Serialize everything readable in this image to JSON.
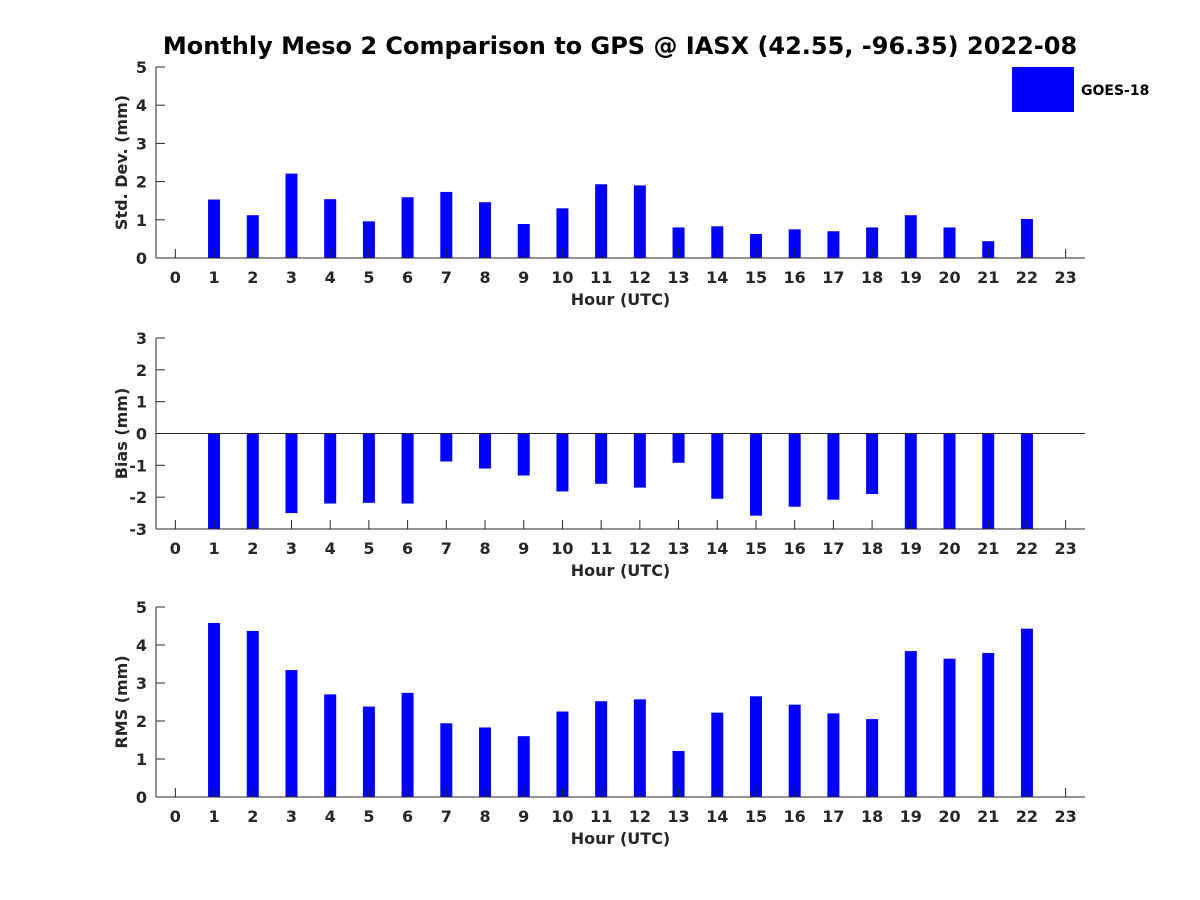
{
  "title": "Monthly Meso 2 Comparison to GPS @ IASX (42.55, -96.35) 2022-08",
  "legend": {
    "label": "GOES-18",
    "color": "#0000ff"
  },
  "chart_data": [
    {
      "type": "bar",
      "name": "std",
      "categories": [
        "0",
        "1",
        "2",
        "3",
        "4",
        "5",
        "6",
        "7",
        "8",
        "9",
        "10",
        "11",
        "12",
        "13",
        "14",
        "15",
        "16",
        "17",
        "18",
        "19",
        "20",
        "21",
        "22",
        "23"
      ],
      "series": [
        {
          "name": "GOES-18",
          "color": "#0000ff",
          "values": [
            null,
            1.53,
            1.12,
            2.21,
            1.54,
            0.96,
            1.59,
            1.73,
            1.46,
            0.89,
            1.3,
            1.93,
            1.9,
            0.8,
            0.83,
            0.63,
            0.75,
            0.7,
            0.8,
            1.12,
            0.8,
            0.44,
            1.02,
            null
          ]
        }
      ],
      "xlabel": "Hour (UTC)",
      "ylabel": "Std. Dev. (mm)",
      "xlim": [
        -0.5,
        23.5
      ],
      "ylim": [
        0,
        5
      ],
      "yticks": [
        0,
        1,
        2,
        3,
        4,
        5
      ],
      "zero_line": false
    },
    {
      "type": "bar",
      "name": "bias",
      "categories": [
        "0",
        "1",
        "2",
        "3",
        "4",
        "5",
        "6",
        "7",
        "8",
        "9",
        "10",
        "11",
        "12",
        "13",
        "14",
        "15",
        "16",
        "17",
        "18",
        "19",
        "20",
        "21",
        "22",
        "23"
      ],
      "series": [
        {
          "name": "GOES-18",
          "color": "#0000ff",
          "values": [
            null,
            -3.0,
            -3.0,
            -2.5,
            -2.2,
            -2.18,
            -2.2,
            -0.88,
            -1.1,
            -1.32,
            -1.82,
            -1.58,
            -1.7,
            -0.92,
            -2.05,
            -2.58,
            -2.3,
            -2.08,
            -1.9,
            -3.0,
            -3.0,
            -3.0,
            -3.0,
            null
          ]
        }
      ],
      "xlabel": "Hour (UTC)",
      "ylabel": "Bias (mm)",
      "xlim": [
        -0.5,
        23.5
      ],
      "ylim": [
        -3,
        3
      ],
      "yticks": [
        -3,
        -2,
        -1,
        0,
        1,
        2,
        3
      ],
      "zero_line": true
    },
    {
      "type": "bar",
      "name": "rms",
      "categories": [
        "0",
        "1",
        "2",
        "3",
        "4",
        "5",
        "6",
        "7",
        "8",
        "9",
        "10",
        "11",
        "12",
        "13",
        "14",
        "15",
        "16",
        "17",
        "18",
        "19",
        "20",
        "21",
        "22",
        "23"
      ],
      "series": [
        {
          "name": "GOES-18",
          "color": "#0000ff",
          "values": [
            null,
            4.58,
            4.37,
            3.34,
            2.7,
            2.38,
            2.74,
            1.94,
            1.83,
            1.6,
            2.25,
            2.52,
            2.57,
            1.21,
            2.22,
            2.65,
            2.43,
            2.2,
            2.05,
            3.84,
            3.64,
            3.79,
            4.43,
            null
          ]
        }
      ],
      "xlabel": "Hour (UTC)",
      "ylabel": "RMS (mm)",
      "xlim": [
        -0.5,
        23.5
      ],
      "ylim": [
        0,
        5
      ],
      "yticks": [
        0,
        1,
        2,
        3,
        4,
        5
      ],
      "zero_line": false
    }
  ]
}
